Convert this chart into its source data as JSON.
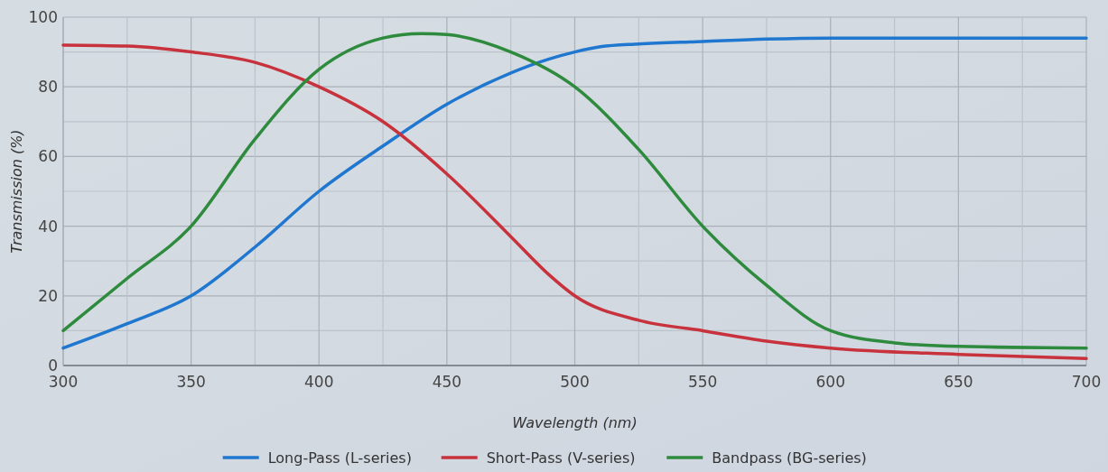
{
  "chart_data": {
    "type": "line",
    "xlabel": "Wavelength (nm)",
    "ylabel": "Transmission (%)",
    "xlim": [
      300,
      700
    ],
    "ylim": [
      0,
      100
    ],
    "xticks": [
      300,
      {
        "value": 325,
        "label": null
      },
      350,
      {
        "value": 375,
        "label": null
      },
      400,
      {
        "value": 425,
        "label": null
      },
      450,
      {
        "value": 475,
        "label": null
      },
      500,
      {
        "value": 525,
        "label": null
      },
      550,
      {
        "value": 575,
        "label": null
      },
      600,
      {
        "value": 625,
        "label": null
      },
      650,
      {
        "value": 675,
        "label": null
      },
      700
    ],
    "yticks": [
      0,
      {
        "value": 10,
        "label": null
      },
      20,
      {
        "value": 30,
        "label": null
      },
      40,
      {
        "value": 50,
        "label": null
      },
      60,
      {
        "value": 70,
        "label": null
      },
      80,
      {
        "value": 90,
        "label": null
      },
      100
    ],
    "grid": true,
    "legend": "bottom",
    "marker": "none",
    "line_style": "solid",
    "series": [
      {
        "name": "Long-Pass (L-series)",
        "color": "#1f77d0",
        "x": [
          300,
          325,
          350,
          375,
          400,
          425,
          450,
          475,
          490,
          500,
          510,
          525,
          550,
          575,
          600,
          650,
          700
        ],
        "values": [
          5,
          12,
          20,
          34,
          50,
          63,
          75,
          84,
          88,
          90,
          91.5,
          92.3,
          93,
          93.7,
          94,
          94,
          94
        ]
      },
      {
        "name": "Short-Pass (V-series)",
        "color": "#c8323c",
        "x": [
          300,
          325,
          350,
          375,
          400,
          425,
          450,
          475,
          490,
          500,
          525,
          550,
          575,
          600,
          650,
          700
        ],
        "values": [
          92,
          91.7,
          90,
          87,
          80,
          70,
          55,
          37,
          26,
          20,
          13,
          10,
          7,
          5,
          3.2,
          2
        ]
      },
      {
        "name": "Bandpass (BG-series)",
        "color": "#2e8b3e",
        "x": [
          300,
          325,
          350,
          375,
          400,
          425,
          440,
          450,
          475,
          500,
          525,
          550,
          575,
          600,
          625,
          650,
          700
        ],
        "values": [
          10,
          25,
          40,
          65,
          85,
          94,
          95.3,
          95,
          90,
          80,
          62,
          40,
          23,
          10,
          6.5,
          5.5,
          5
        ]
      }
    ]
  }
}
